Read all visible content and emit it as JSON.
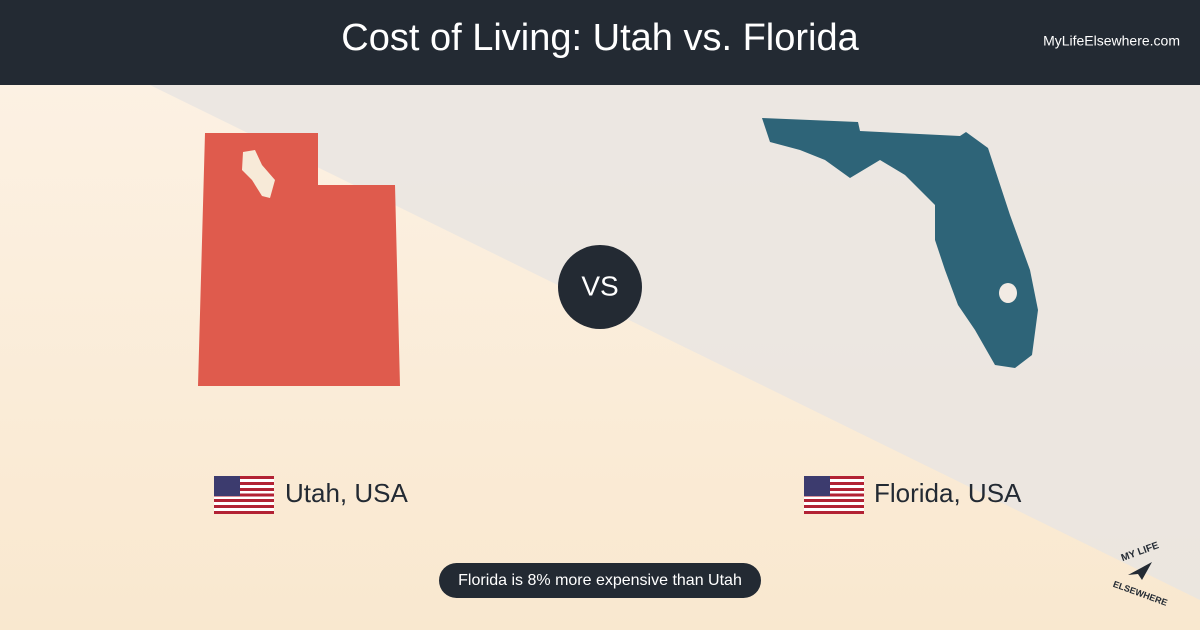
{
  "header": {
    "title": "Cost of Living: Utah vs. Florida",
    "site": "MyLifeElsewhere.com"
  },
  "left": {
    "label": "Utah, USA"
  },
  "right": {
    "label": "Florida, USA"
  },
  "vs": "VS",
  "summary": "Florida is 8% more expensive than Utah",
  "logo": {
    "top": "MY LIFE",
    "bottom": "ELSEWHERE"
  }
}
